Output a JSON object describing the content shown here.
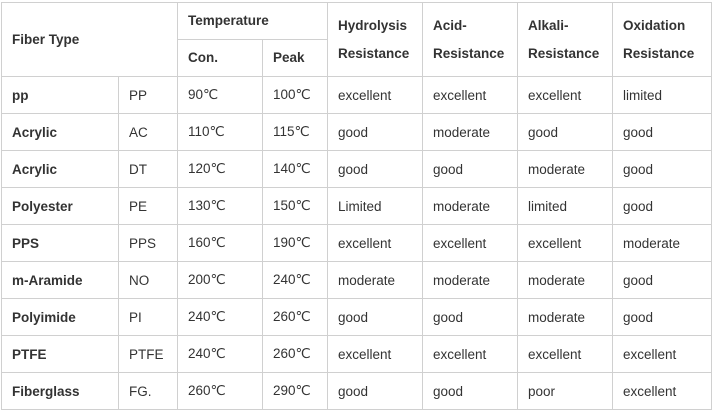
{
  "table": {
    "header": {
      "fiber_type": "Fiber Type",
      "temperature": "Temperature",
      "con": "Con.",
      "peak": "Peak",
      "resistances": [
        "Hydrolysis Resistance",
        "Acid-Resistance",
        "Alkali-Resistance",
        "Oxidation Resistance"
      ]
    },
    "rows": [
      [
        "pp",
        "PP",
        "90℃",
        "100℃",
        "excellent",
        "excellent",
        "excellent",
        "limited"
      ],
      [
        "Acrylic",
        "AC",
        "110℃",
        "115℃",
        "good",
        "moderate",
        "good",
        "good"
      ],
      [
        "Acrylic",
        "DT",
        "120℃",
        "140℃",
        "good",
        "good",
        "moderate",
        "good"
      ],
      [
        "Polyester",
        "PE",
        "130℃",
        "150℃",
        "Limited",
        "moderate",
        "limited",
        "good"
      ],
      [
        "PPS",
        "PPS",
        "160℃",
        "190℃",
        "excellent",
        "excellent",
        "excellent",
        "moderate"
      ],
      [
        "m-Aramide",
        "NO",
        "200℃",
        "240℃",
        "moderate",
        "moderate",
        "moderate",
        "good"
      ],
      [
        "Polyimide",
        "PI",
        "240℃",
        "260℃",
        "good",
        "good",
        "moderate",
        "good"
      ],
      [
        "PTFE",
        "PTFE",
        "240℃",
        "260℃",
        "excellent",
        "excellent",
        "excellent",
        "excellent"
      ],
      [
        "Fiberglass",
        "FG.",
        "260℃",
        "290℃",
        "good",
        "good",
        "poor",
        "excellent"
      ]
    ]
  }
}
